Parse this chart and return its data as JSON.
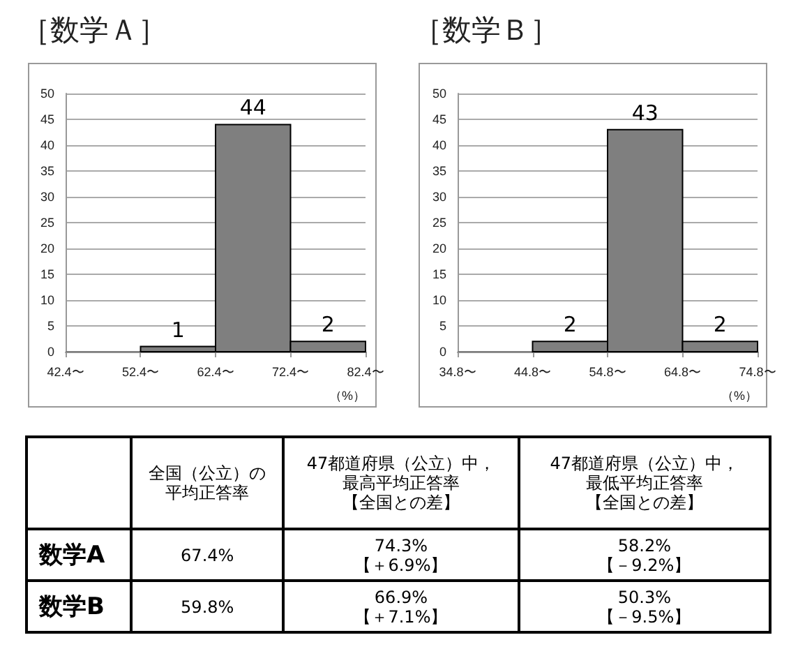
{
  "chart_data": [
    {
      "type": "histogram",
      "title": "［数学Ａ］",
      "xlabel": "（%）",
      "bins": [
        42.4,
        52.4,
        62.4,
        72.4,
        82.4
      ],
      "values": [
        0,
        1,
        44,
        2
      ],
      "value_labels": [
        null,
        "1",
        "44",
        "2"
      ],
      "color": "#7f7f7f",
      "xlim": [
        42.4,
        82.4
      ],
      "xticks": [
        {
          "value": 42.4,
          "label": "42.4〜"
        },
        {
          "value": 52.4,
          "label": "52.4〜"
        },
        {
          "value": 62.4,
          "label": "62.4〜"
        },
        {
          "value": 72.4,
          "label": "72.4〜"
        },
        {
          "value": 82.4,
          "label": "82.4〜"
        }
      ],
      "ylim": [
        0,
        50
      ],
      "yticks": [
        0,
        5,
        10,
        15,
        20,
        25,
        30,
        35,
        40,
        45,
        50
      ],
      "grid": "y"
    },
    {
      "type": "histogram",
      "title": "［数学Ｂ］",
      "xlabel": "（%）",
      "bins": [
        34.8,
        44.8,
        54.8,
        64.8,
        74.8
      ],
      "values": [
        0,
        2,
        43,
        2
      ],
      "value_labels": [
        null,
        "2",
        "43",
        "2"
      ],
      "color": "#7f7f7f",
      "xlim": [
        34.8,
        74.8
      ],
      "xticks": [
        {
          "value": 34.8,
          "label": "34.8〜"
        },
        {
          "value": 44.8,
          "label": "44.8〜"
        },
        {
          "value": 54.8,
          "label": "54.8〜"
        },
        {
          "value": 64.8,
          "label": "64.8〜"
        },
        {
          "value": 74.8,
          "label": "74.8〜"
        }
      ],
      "ylim": [
        0,
        50
      ],
      "yticks": [
        0,
        5,
        10,
        15,
        20,
        25,
        30,
        35,
        40,
        45,
        50
      ],
      "grid": "y"
    },
    {
      "type": "other",
      "annotations": [
        "全国（公立）の平均正答率",
        "47都道府県（公立）中，最高平均正答率【全国との差】",
        "47都道府県（公立）中，最低平均正答率【全国との差】",
        "数学A",
        "67.4%",
        "74.3%\n【＋6.9%】",
        "58.2%\n【－9.2%】",
        "数学B",
        "59.8%",
        "66.9%\n【＋7.1%】",
        "50.3%\n【－9.5%】"
      ]
    }
  ]
}
